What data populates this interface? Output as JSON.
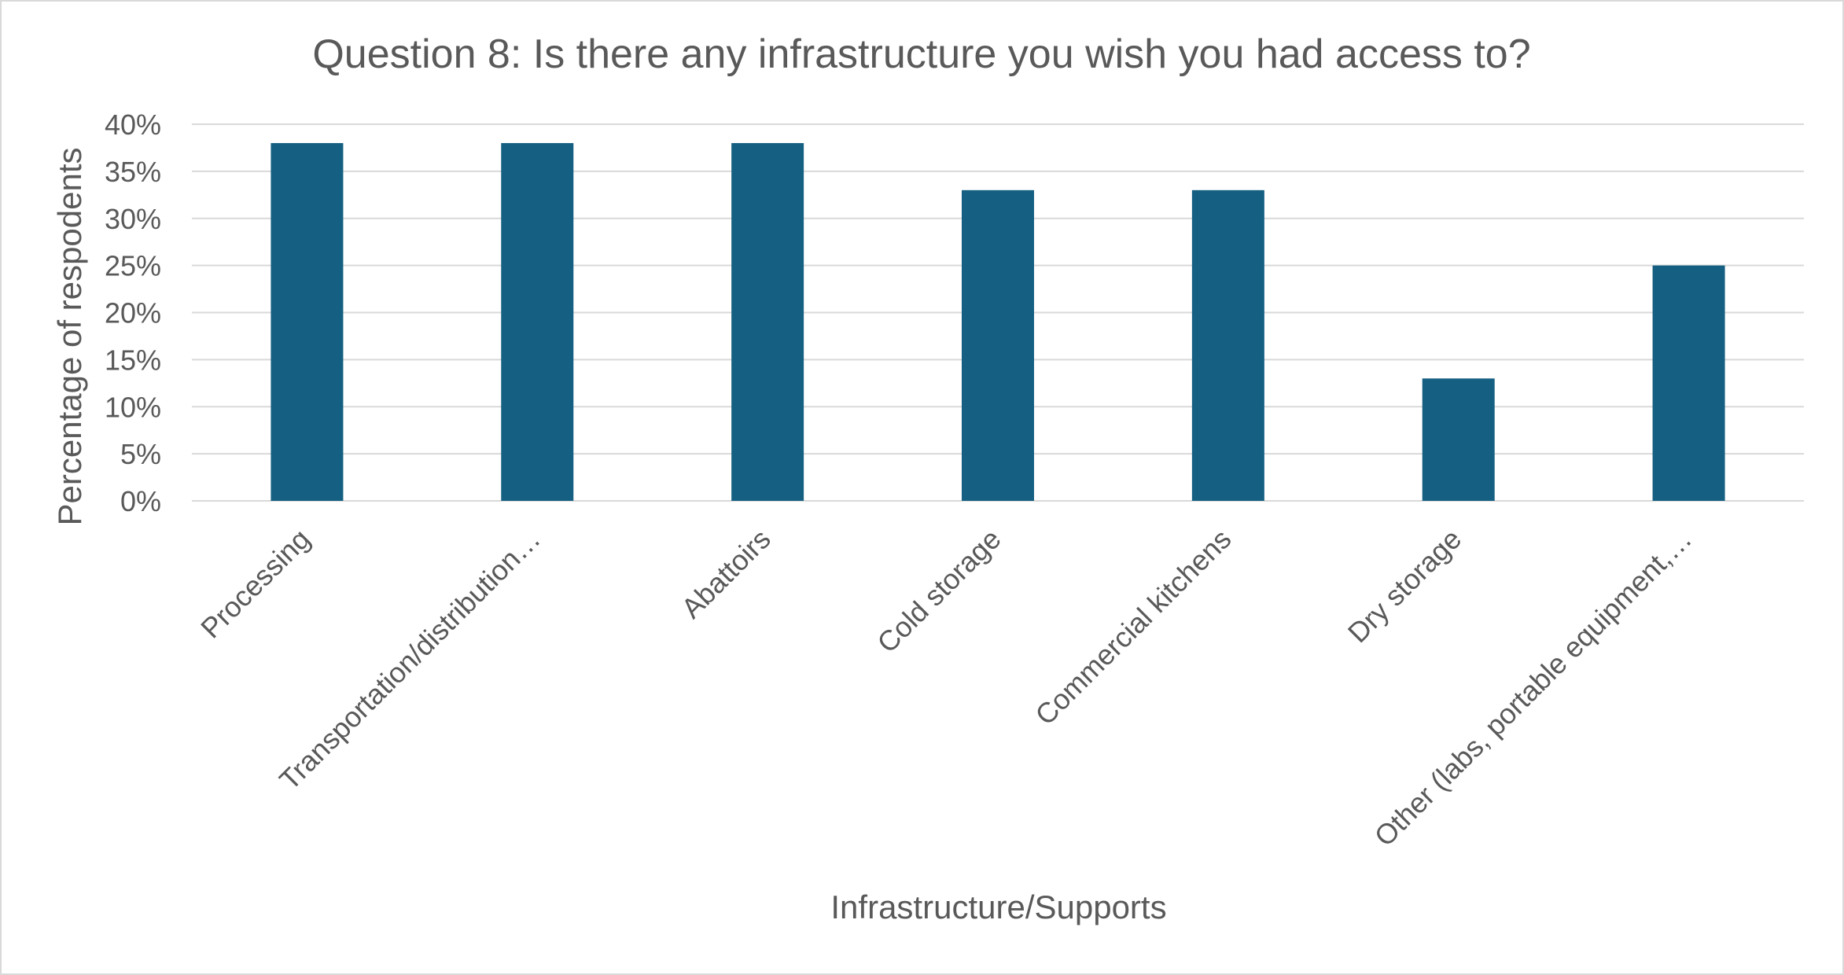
{
  "chart_data": {
    "type": "bar",
    "title": "Question 8: Is there any infrastructure you wish you had access to?",
    "xlabel": "Infrastructure/Supports",
    "ylabel": "Percentage of respodents",
    "categories": [
      "Processing",
      "Transportation/distribution…",
      "Abattoirs",
      "Cold storage",
      "Commercial kitchens",
      "Dry storage",
      "Other (labs, portable equipment,…"
    ],
    "series": [
      {
        "values": [
          38,
          38,
          38,
          33,
          33,
          13,
          25
        ]
      }
    ],
    "ylim": [
      0,
      40
    ],
    "yticks": [
      "0%",
      "5%",
      "10%",
      "15%",
      "20%",
      "25%",
      "30%",
      "35%",
      "40%"
    ],
    "grid": true,
    "legend": "none",
    "colors": {
      "bar": "#156082",
      "text": "#595959",
      "grid": "#d9d9d9"
    }
  }
}
